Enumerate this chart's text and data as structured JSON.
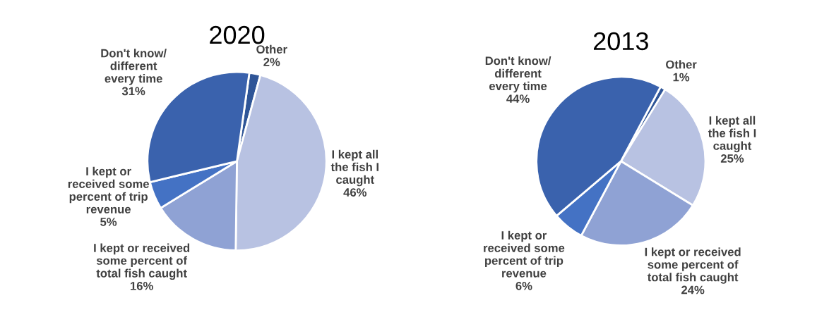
{
  "chart_data": [
    {
      "type": "pie",
      "title": "2020",
      "categories": [
        "Other",
        "I kept all\nthe fish I\ncaught",
        "I kept or received\nsome percent of\ntotal fish caught",
        "I kept or\nreceived some\npercent of trip\nrevenue",
        "Don't know/\ndifferent\nevery time"
      ],
      "values": [
        2,
        46,
        16,
        5,
        31
      ],
      "value_labels": [
        "2%",
        "46%",
        "16%",
        "5%",
        "31%"
      ],
      "colors": [
        "#2f5597",
        "#b8c2e2",
        "#8fa2d4",
        "#4472c4",
        "#3a62ad"
      ]
    },
    {
      "type": "pie",
      "title": "2013",
      "categories": [
        "Other",
        "I kept all\nthe fish I\ncaught",
        "I kept or received\nsome percent of\ntotal fish caught",
        "I kept or\nreceived some\npercent of trip\nrevenue",
        "Don't know/\ndifferent\nevery time"
      ],
      "values": [
        1,
        25,
        24,
        6,
        44
      ],
      "value_labels": [
        "1%",
        "25%",
        "24%",
        "6%",
        "44%"
      ],
      "colors": [
        "#2f5597",
        "#b8c2e2",
        "#8fa2d4",
        "#4472c4",
        "#3a62ad"
      ]
    }
  ]
}
